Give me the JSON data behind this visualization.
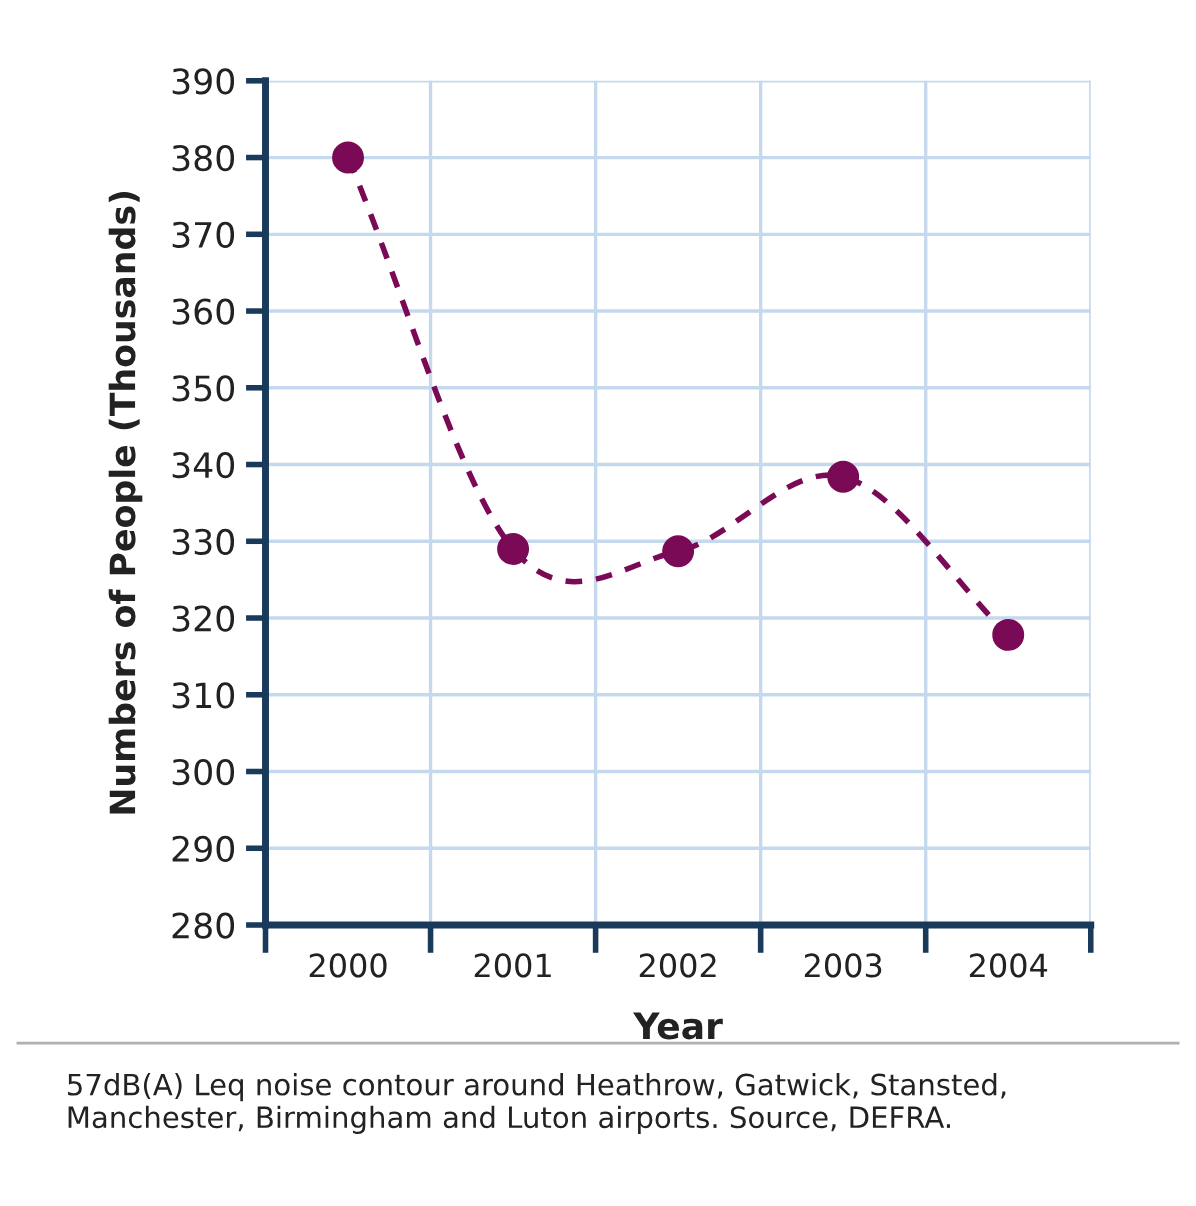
{
  "chart_data": {
    "type": "line",
    "xlabel": "Year",
    "ylabel": "Numbers of People (Thousands)",
    "categories": [
      "2000",
      "2001",
      "2002",
      "2003",
      "2004"
    ],
    "series": [
      {
        "color": "#7a0a55",
        "values": [
          380,
          329,
          328.7,
          338.4,
          317.8
        ]
      }
    ],
    "ylim": [
      280,
      390
    ],
    "yticks": [
      280,
      290,
      300,
      310,
      320,
      330,
      340,
      350,
      360,
      370,
      380,
      390
    ],
    "grid": true,
    "marker": "circle",
    "line_style": "dashed",
    "annotations": [
      "57dB(A) Leq noise contour around Heathrow, Gatwick, Stansted, Manchester, Birmingham and Luton airports. Source, DEFRA."
    ]
  }
}
